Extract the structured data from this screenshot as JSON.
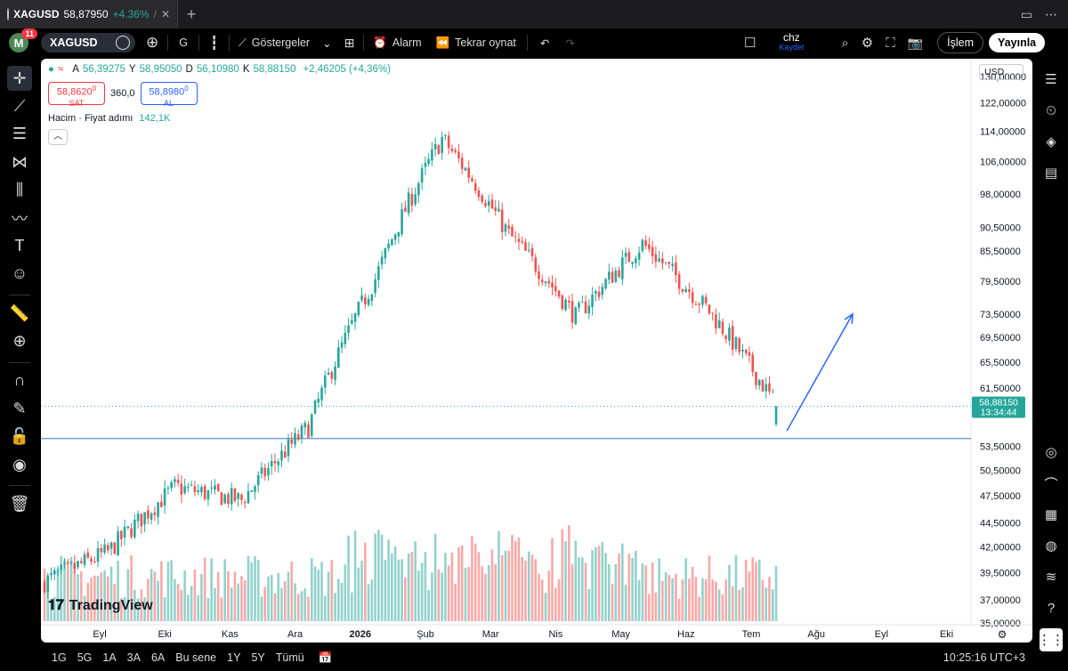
{
  "tabbar": {
    "symbol": "XAGUSD",
    "price": "58,87950",
    "change": "+4.36%",
    "suffix": "/"
  },
  "toolbar": {
    "avatar_letter": "M",
    "notif_count": "11",
    "symbol": "XAGUSD",
    "interval": "G",
    "indicators_label": "Göstergeler",
    "alert_label": "Alarm",
    "replay_label": "Tekrar oynat",
    "layout_name": "chz",
    "layout_save": "Kaydet",
    "trade_label": "İşlem",
    "publish_label": "Yayınla"
  },
  "legend": {
    "open_k": "A",
    "open_v": "56,39275",
    "high_k": "Y",
    "high_v": "58,95050",
    "low_k": "D",
    "low_v": "56,10980",
    "close_k": "K",
    "close_v": "58,88150",
    "change_v": "+2,46205 (+4,36%)"
  },
  "trade": {
    "sell_price": "58,8620",
    "sell_sup": "0",
    "sell_label": "SAT",
    "spread": "360,0",
    "buy_price": "58,8980",
    "buy_sup": "0",
    "buy_label": "AL"
  },
  "volume": {
    "label": "Hacim · Fiyat adımı",
    "value": "142,1K"
  },
  "currency": "USD",
  "logo_text": "TradingView",
  "price_axis": {
    "ticks": [
      "130,00000",
      "122,00000",
      "114,00000",
      "106,00000",
      "98,00000",
      "90,50000",
      "85,50000",
      "79,50000",
      "73,50000",
      "69,50000",
      "65,50000",
      "61,50000",
      "53,50000",
      "50,50000",
      "47,50000",
      "44,50000",
      "42,00000",
      "39,50000",
      "37,00000",
      "35,00000"
    ],
    "last_price": "58,88150",
    "countdown": "13:34:44"
  },
  "time_axis": {
    "labels": [
      "Eyl",
      "Eki",
      "Kas",
      "Ara",
      "2026",
      "Şub",
      "Mar",
      "Nis",
      "May",
      "Haz",
      "Tem",
      "Ağu",
      "Eyl",
      "Eki"
    ]
  },
  "chart_data": {
    "type": "candlestick",
    "scale": "log",
    "ylim": [
      35,
      130
    ],
    "support_line": 54.5,
    "last_close": 58.8815,
    "trend_arrow": {
      "from": 55.5,
      "to": 73.5
    },
    "monthly_closes": [
      {
        "x": "Eyl",
        "y": 41.5
      },
      {
        "x": "Eki",
        "y": 48.5
      },
      {
        "x": "Kas",
        "y": 47.0
      },
      {
        "x": "Ara",
        "y": 56.0
      },
      {
        "x": "2026",
        "y": 80.0
      },
      {
        "x": "Şub",
        "y": 112.0
      },
      {
        "x": "Mar",
        "y": 89.0
      },
      {
        "x": "Nis",
        "y": 73.0
      },
      {
        "x": "May",
        "y": 87.0
      },
      {
        "x": "Haz",
        "y": 74.0
      },
      {
        "x": "Tem",
        "y": 59.0
      }
    ]
  },
  "bottombar": {
    "ranges": [
      "1G",
      "5G",
      "1A",
      "3A",
      "6A",
      "Bu sene",
      "1Y",
      "5Y",
      "Tümü"
    ],
    "clock": "10:25:16 UTC+3"
  }
}
